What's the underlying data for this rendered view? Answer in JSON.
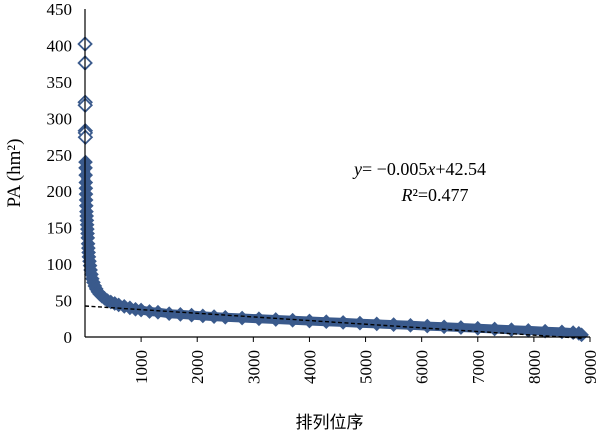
{
  "chart_data": {
    "type": "scatter",
    "title": "",
    "xlabel": "排列位序",
    "ylabel": "PA (hm²)",
    "xlim": [
      0,
      9000
    ],
    "ylim": [
      0,
      450
    ],
    "x_ticks": [
      "1000",
      "2000",
      "3000",
      "4000",
      "5000",
      "6000",
      "7000",
      "8000",
      "9000"
    ],
    "y_ticks": [
      "0",
      "50",
      "100",
      "150",
      "200",
      "250",
      "300",
      "350",
      "400",
      "450"
    ],
    "grid": false,
    "marker": "diamond-open",
    "colors": {
      "series": "#3a5a8c",
      "trend": "#000000",
      "axis": "#000000"
    },
    "series": [
      {
        "points": [
          [
            1,
            402
          ],
          [
            2,
            376
          ],
          [
            3,
            322
          ],
          [
            4,
            318
          ],
          [
            5,
            283
          ],
          [
            6,
            280
          ],
          [
            7,
            274
          ],
          [
            9,
            240
          ],
          [
            10,
            232
          ],
          [
            12,
            222
          ],
          [
            14,
            212
          ],
          [
            16,
            204
          ],
          [
            18,
            196
          ],
          [
            20,
            188
          ],
          [
            23,
            180
          ],
          [
            26,
            172
          ],
          [
            30,
            166
          ],
          [
            34,
            160
          ],
          [
            38,
            154
          ],
          [
            42,
            148
          ],
          [
            46,
            142
          ],
          [
            50,
            136
          ],
          [
            55,
            128
          ],
          [
            60,
            122
          ],
          [
            65,
            116
          ],
          [
            70,
            110
          ],
          [
            80,
            104
          ],
          [
            90,
            98
          ],
          [
            100,
            92
          ],
          [
            115,
            86
          ],
          [
            130,
            80
          ],
          [
            150,
            75
          ],
          [
            175,
            70
          ],
          [
            200,
            66
          ],
          [
            230,
            62
          ],
          [
            260,
            59
          ],
          [
            300,
            56
          ],
          [
            350,
            53
          ],
          [
            400,
            50
          ],
          [
            460,
            48
          ],
          [
            530,
            46
          ],
          [
            600,
            44
          ],
          [
            700,
            42
          ],
          [
            800,
            40
          ],
          [
            900,
            38
          ],
          [
            1000,
            37
          ],
          [
            1150,
            35
          ],
          [
            1300,
            34
          ],
          [
            1500,
            32
          ],
          [
            1700,
            31
          ],
          [
            1900,
            30
          ],
          [
            2100,
            29
          ],
          [
            2300,
            28
          ],
          [
            2500,
            27
          ],
          [
            2800,
            26
          ],
          [
            3100,
            25
          ],
          [
            3400,
            24
          ],
          [
            3700,
            23
          ],
          [
            4000,
            22
          ],
          [
            4300,
            21
          ],
          [
            4600,
            20
          ],
          [
            4900,
            19
          ],
          [
            5200,
            18
          ],
          [
            5500,
            17
          ],
          [
            5800,
            16
          ],
          [
            6100,
            15
          ],
          [
            6400,
            14
          ],
          [
            6700,
            13
          ],
          [
            7000,
            12
          ],
          [
            7300,
            11
          ],
          [
            7600,
            10
          ],
          [
            7900,
            9
          ],
          [
            8200,
            8
          ],
          [
            8500,
            7
          ],
          [
            8700,
            6
          ],
          [
            8800,
            5
          ],
          [
            8850,
            3
          ]
        ]
      }
    ],
    "trendline": {
      "type": "linear",
      "slope": -0.005,
      "intercept": 42.54,
      "equation_label": "y= −0.005x+42.54",
      "r2_label": "R²=0.477"
    }
  }
}
